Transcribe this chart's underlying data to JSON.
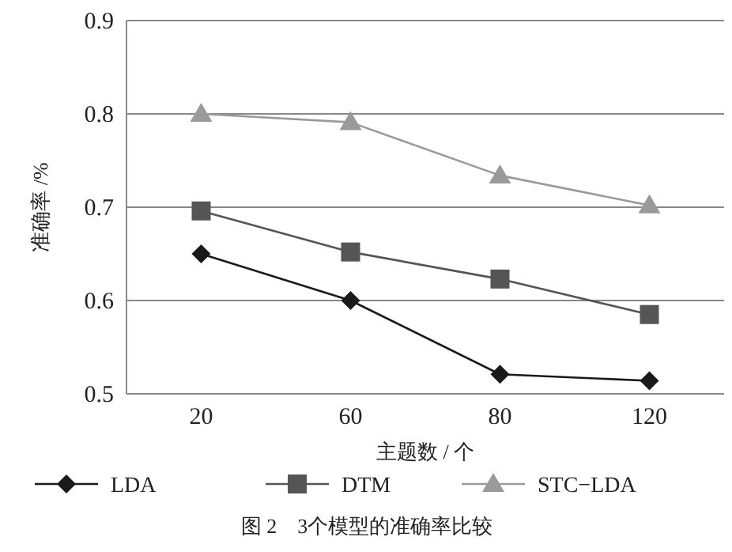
{
  "chart_data": {
    "type": "line",
    "xlabel": "主题数 / 个",
    "ylabel": "准确率 /%",
    "categories": [
      "20",
      "60",
      "80",
      "120"
    ],
    "series": [
      {
        "name": "LDA",
        "color": "#1a1a1a",
        "marker": "diamond",
        "values": [
          0.65,
          0.6,
          0.521,
          0.514
        ]
      },
      {
        "name": "DTM",
        "color": "#555555",
        "marker": "square",
        "values": [
          0.696,
          0.652,
          0.623,
          0.585
        ]
      },
      {
        "name": "STC−LDA",
        "color": "#9a9a9a",
        "marker": "triangle",
        "values": [
          0.8,
          0.791,
          0.734,
          0.702
        ]
      }
    ],
    "ylim": [
      0.5,
      0.9
    ],
    "yticks": [
      {
        "value": 0.5,
        "label": "0.5"
      },
      {
        "value": 0.6,
        "label": "0.6"
      },
      {
        "value": 0.7,
        "label": "0.7"
      },
      {
        "value": 0.8,
        "label": "0.8"
      },
      {
        "value": 0.9,
        "label": "0.9"
      }
    ],
    "grid": "y",
    "legend": "bottom",
    "annotations": [
      "图 2　3个模型的准确率比较"
    ]
  }
}
